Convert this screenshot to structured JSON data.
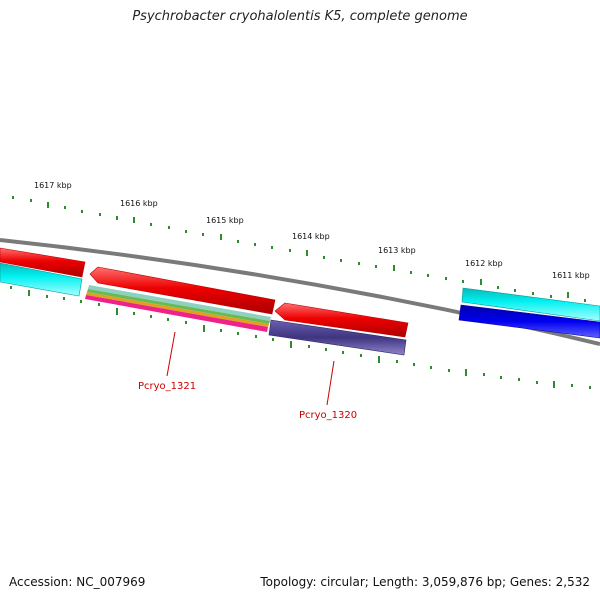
{
  "title": "Psychrobacter cryohalolentis K5, complete genome",
  "footer": {
    "accession": "Accession: NC_007969",
    "summary": "Topology: circular; Length: 3,059,876 bp; Genes: 2,532"
  },
  "colors": {
    "backbone": "#7a7a7a",
    "tick": "#2e8b2e",
    "label_line": "#cc0000",
    "red_gene": "#ee0000",
    "cyan_gene": "#00d8e0",
    "blue_gene": "#0000ee",
    "purple_gene": "#4a3f8c"
  },
  "ticks": [
    {
      "label": "1617 kbp"
    },
    {
      "label": "1616 kbp"
    },
    {
      "label": "1615 kbp"
    },
    {
      "label": "1614 kbp"
    },
    {
      "label": "1613 kbp"
    },
    {
      "label": "1612 kbp"
    },
    {
      "label": "1611 kbp"
    }
  ],
  "gene_labels": [
    {
      "text": "Pcryo_1321"
    },
    {
      "text": "Pcryo_1320"
    }
  ]
}
